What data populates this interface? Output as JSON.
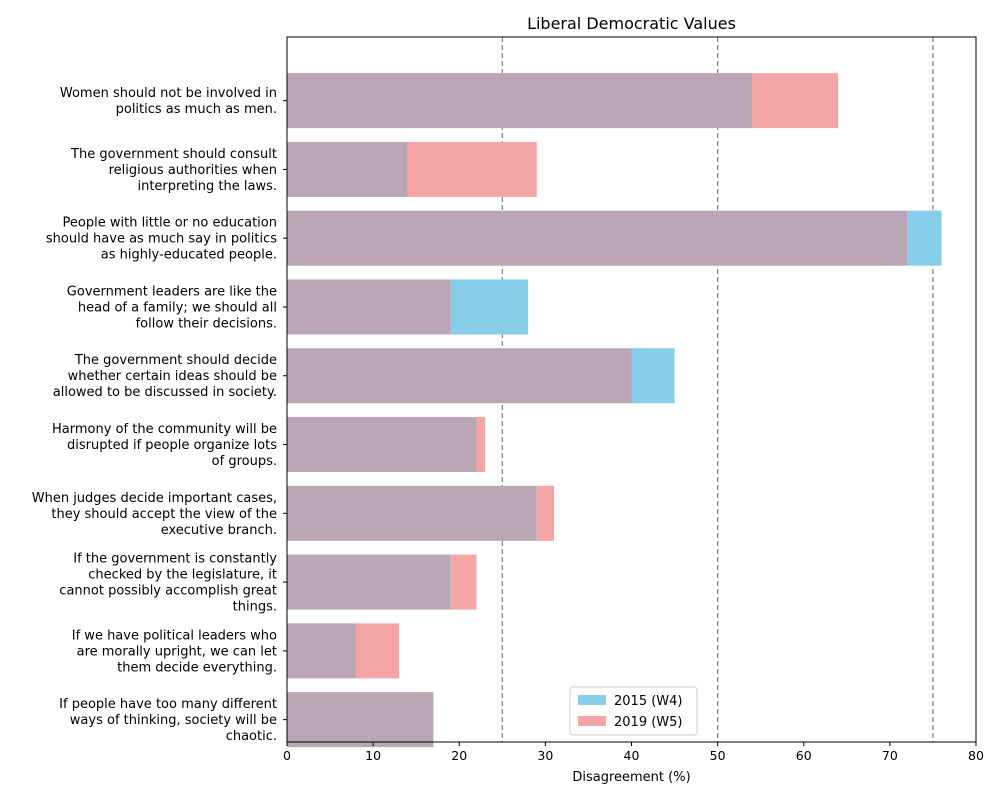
{
  "chart_data": {
    "type": "bar",
    "orientation": "horizontal",
    "title": "Liberal Democratic Values",
    "xlabel": "Disagreement (%)",
    "ylabel": "",
    "xlim": [
      0,
      80
    ],
    "xticks": [
      "0",
      "10",
      "20",
      "30",
      "40",
      "50",
      "60",
      "70",
      "80"
    ],
    "reference_lines": [
      25,
      50,
      75
    ],
    "legend_position": "bottom-center",
    "categories": [
      [
        "Women should not be involved in",
        "politics as much as men."
      ],
      [
        "The government should consult",
        "religious authorities when",
        "interpreting the laws."
      ],
      [
        "People with little or no education",
        "should have as much say in politics",
        "as highly-educated people."
      ],
      [
        "Government leaders are like the",
        "head of a family; we should all",
        "follow their decisions."
      ],
      [
        "The government should decide",
        "whether certain ideas should be",
        "allowed to be discussed in society."
      ],
      [
        "Harmony of the community will be",
        "disrupted if people organize lots",
        "of groups."
      ],
      [
        "When judges decide important cases,",
        "they should accept the view of the",
        "executive branch."
      ],
      [
        "If the government is constantly",
        "checked by the legislature, it",
        "cannot possibly accomplish great",
        "things."
      ],
      [
        "If we have political leaders who",
        "are morally upright, we can let",
        "them decide everything."
      ],
      [
        "If people have too many different",
        "ways of thinking, society will be",
        "chaotic."
      ]
    ],
    "series": [
      {
        "name": "2015 (W4)",
        "color": "#87ceeb",
        "values": [
          54,
          14,
          76,
          28,
          45,
          22,
          29,
          19,
          8,
          17
        ]
      },
      {
        "name": "2019 (W5)",
        "color": "#f4a6a6",
        "values": [
          64,
          29,
          72,
          19,
          40,
          23,
          31,
          22,
          13,
          17
        ]
      }
    ],
    "overlap_color": "#baa6b4"
  }
}
